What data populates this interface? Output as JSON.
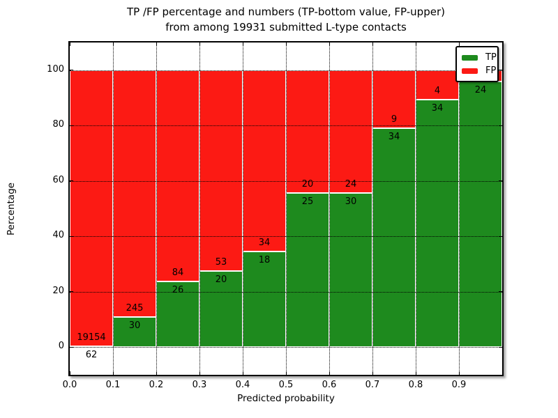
{
  "title": {
    "line1": "TP /FP percentage and numbers (TP-bottom value, FP-upper)",
    "line2": "from among 19931 submitted L-type contacts"
  },
  "axes": {
    "xlabel": "Predicted probability",
    "ylabel": "Percentage",
    "x_tick_labels": [
      "0.0",
      "0.1",
      "0.2",
      "0.3",
      "0.4",
      "0.5",
      "0.6",
      "0.7",
      "0.8",
      "0.9"
    ],
    "y_tick_values": [
      0,
      20,
      40,
      60,
      80,
      100
    ],
    "y_tick_labels": [
      "0",
      "20",
      "40",
      "60",
      "80",
      "100"
    ]
  },
  "legend": {
    "items": [
      {
        "label": "TP",
        "color": "#1e8a1e"
      },
      {
        "label": "FP",
        "color": "#fc1a14"
      }
    ]
  },
  "chart_data": {
    "type": "bar",
    "stacked": true,
    "normalized_to_percent": true,
    "title": "TP /FP percentage and numbers (TP-bottom value, FP-upper) from among 19931 submitted L-type contacts",
    "xlabel": "Predicted probability",
    "ylabel": "Percentage",
    "xlim": [
      0.0,
      1.0
    ],
    "ylim": [
      -10,
      110
    ],
    "grid": true,
    "legend_position": "upper right",
    "total_contacts": 19931,
    "colors": {
      "tp": "#1e8a1e",
      "fp": "#fc1a14"
    },
    "bins": [
      {
        "x0": 0.0,
        "x1": 0.1,
        "tp": 62,
        "fp": 19154
      },
      {
        "x0": 0.1,
        "x1": 0.2,
        "tp": 30,
        "fp": 245
      },
      {
        "x0": 0.2,
        "x1": 0.3,
        "tp": 26,
        "fp": 84
      },
      {
        "x0": 0.3,
        "x1": 0.4,
        "tp": 20,
        "fp": 53
      },
      {
        "x0": 0.4,
        "x1": 0.5,
        "tp": 18,
        "fp": 34
      },
      {
        "x0": 0.5,
        "x1": 0.6,
        "tp": 25,
        "fp": 20
      },
      {
        "x0": 0.6,
        "x1": 0.7,
        "tp": 30,
        "fp": 24
      },
      {
        "x0": 0.7,
        "x1": 0.8,
        "tp": 34,
        "fp": 9
      },
      {
        "x0": 0.8,
        "x1": 0.9,
        "tp": 34,
        "fp": 4
      },
      {
        "x0": 0.9,
        "x1": 1.0,
        "tp": 24,
        "fp": 1
      }
    ]
  }
}
